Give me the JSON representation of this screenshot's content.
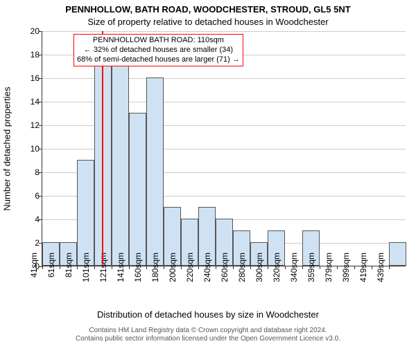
{
  "chart": {
    "type": "histogram",
    "title_line1": "PENNHOLLOW, BATH ROAD, WOODCHESTER, STROUD, GL5 5NT",
    "title_line2": "Size of property relative to detached houses in Woodchester",
    "title_fontsize": 13,
    "y_label": "Number of detached properties",
    "x_label": "Distribution of detached houses by size in Woodchester",
    "label_fontsize": 13,
    "background_color": "#ffffff",
    "grid_color": "#cccccc",
    "axis_color": "#333333",
    "bar_fill": "#cfe2f3",
    "bar_border": "#555555",
    "ylim": [
      0,
      20
    ],
    "ytick_step": 2,
    "yticks": [
      0,
      2,
      4,
      6,
      8,
      10,
      12,
      14,
      16,
      18,
      20
    ],
    "xtick_labels": [
      "41sqm",
      "61sqm",
      "81sqm",
      "101sqm",
      "121sqm",
      "141sqm",
      "160sqm",
      "180sqm",
      "200sqm",
      "220sqm",
      "240sqm",
      "260sqm",
      "280sqm",
      "300sqm",
      "320sqm",
      "340sqm",
      "359sqm",
      "379sqm",
      "399sqm",
      "419sqm",
      "439sqm"
    ],
    "values": [
      2,
      2,
      9,
      18,
      17,
      13,
      16,
      5,
      4,
      5,
      4,
      3,
      2,
      3,
      0,
      3,
      0,
      0,
      0,
      0,
      2
    ],
    "bar_width_ratio": 1.0,
    "reference_line": {
      "color": "#ff0000",
      "x_index": 3.45
    },
    "annotation": {
      "border_color": "#ff0000",
      "line1": "PENNHOLLOW BATH ROAD: 110sqm",
      "line2": "← 32% of detached houses are smaller (34)",
      "line3": "68% of semi-detached houses are larger (71) →"
    },
    "footer_line1": "Contains HM Land Registry data © Crown copyright and database right 2024.",
    "footer_line2": "Contains public sector information licensed under the Open Government Licence v3.0."
  }
}
